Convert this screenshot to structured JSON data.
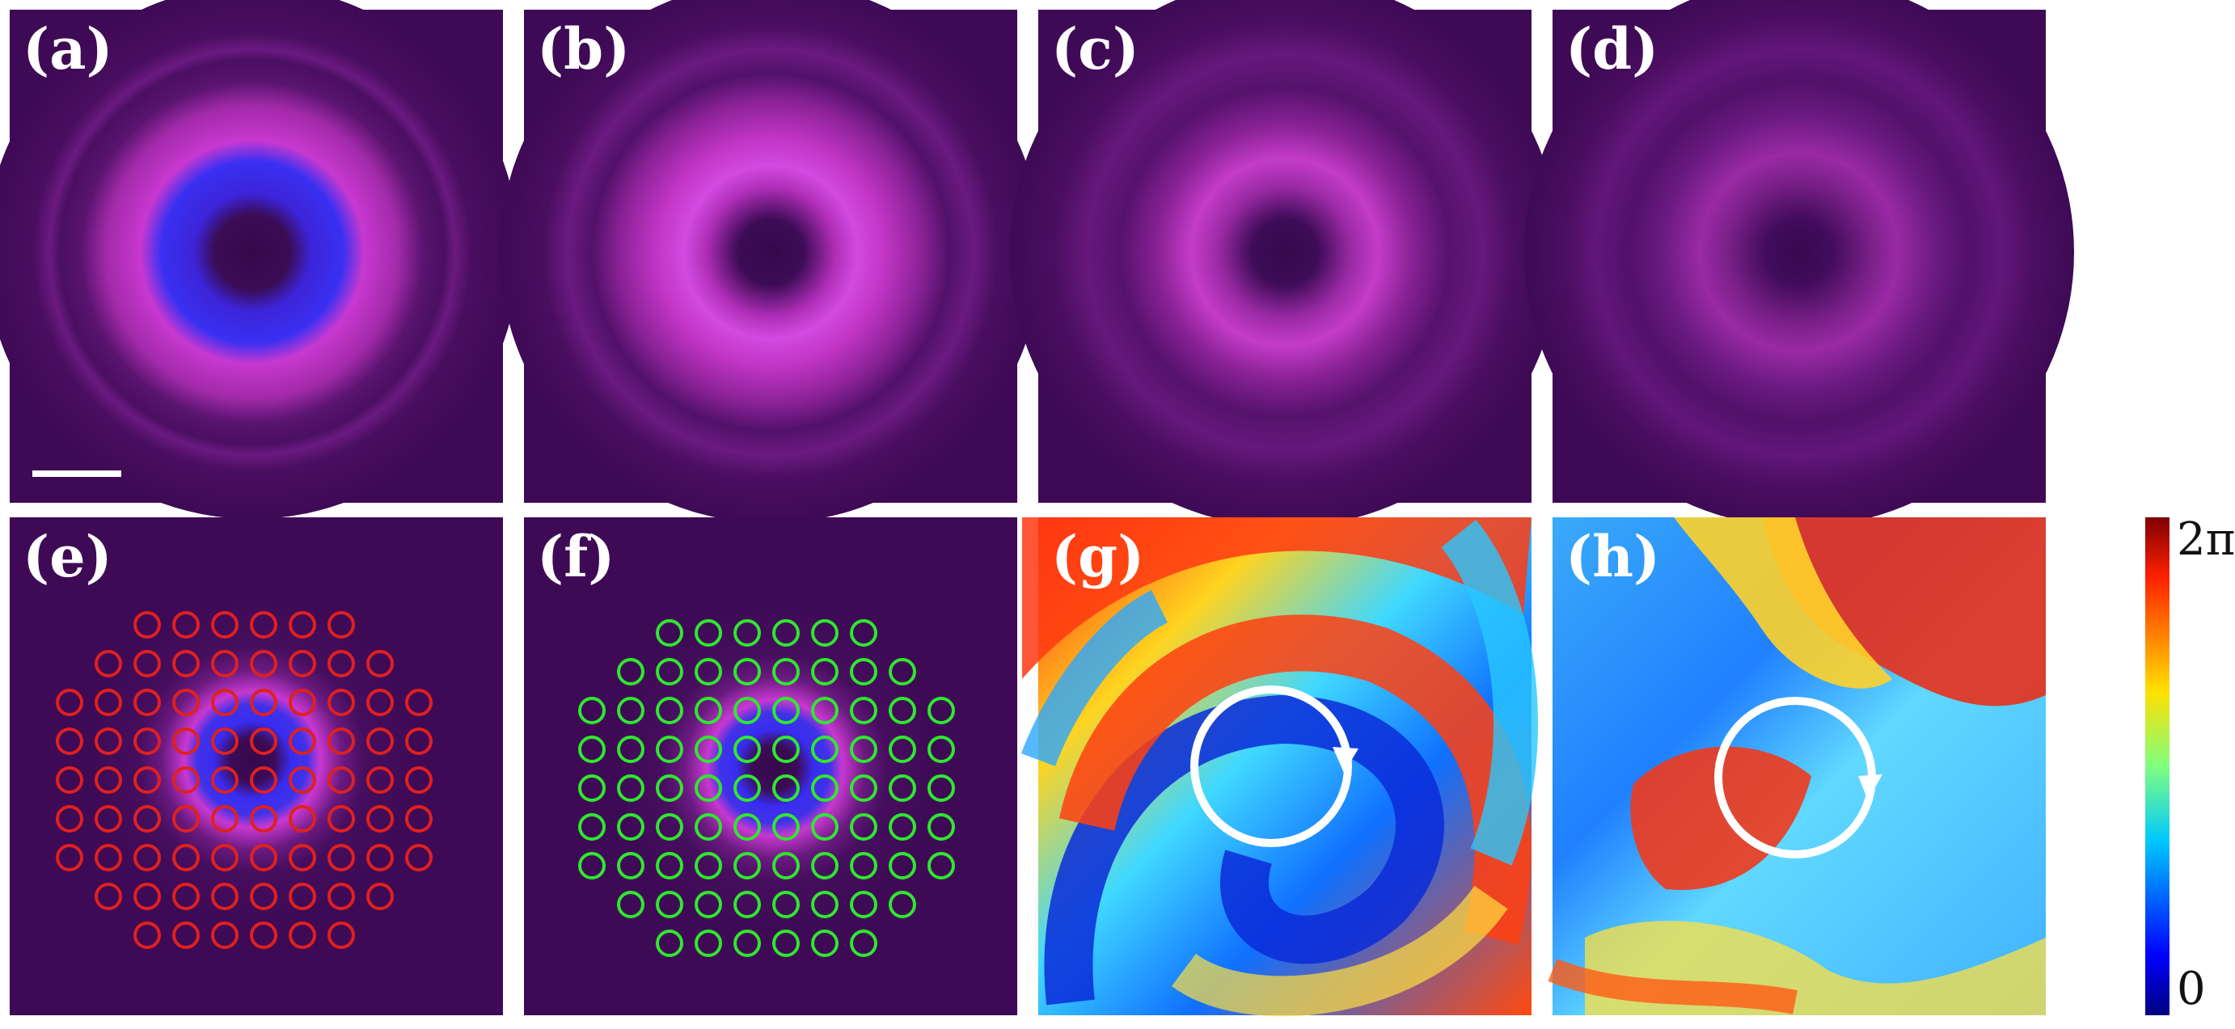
{
  "panels": {
    "a": "(a)",
    "b": "(b)",
    "c": "(c)",
    "d": "(d)",
    "e": "(e)",
    "f": "(f)",
    "g": "(g)",
    "h": "(h)"
  },
  "colorbar": {
    "max_label": "2π",
    "min_label": "0"
  },
  "colors": {
    "background": "#3f0a55",
    "ring": "#d23cc8",
    "ring_core": "#3a2cf0",
    "mask_e": "#e0201e",
    "mask_f": "#2ee82e",
    "arrow": "#ffffff"
  }
}
